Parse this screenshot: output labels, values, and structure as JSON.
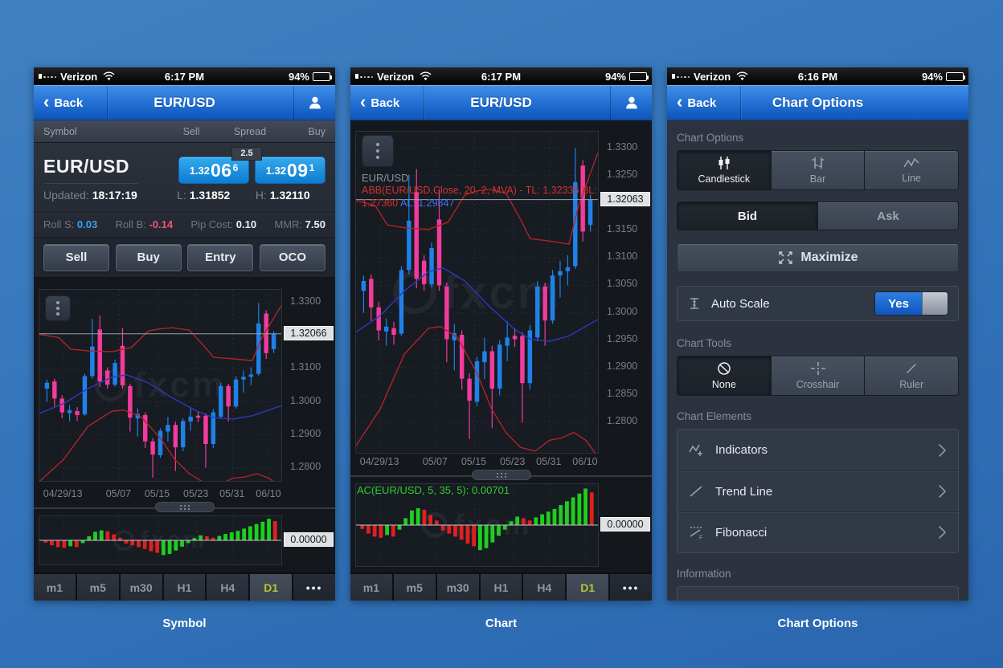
{
  "status": {
    "carrier": "Verizon",
    "battery": "94%",
    "times": [
      "6:17 PM",
      "6:17 PM",
      "6:16 PM"
    ]
  },
  "captions": [
    "Symbol",
    "Chart",
    "Chart Options"
  ],
  "watermark": "fxcm",
  "timeframes": {
    "items": [
      "m1",
      "m5",
      "m30",
      "H1",
      "H4",
      "D1",
      "•••"
    ],
    "active": "D1"
  },
  "panel_symbol": {
    "nav": {
      "back": "Back",
      "title": "EUR/USD"
    },
    "table_header": {
      "symbol": "Symbol",
      "sell": "Sell",
      "spread": "Spread",
      "buy": "Buy"
    },
    "quote": {
      "symbol": "EUR/USD",
      "updated_label": "Updated:",
      "updated": "18:17:19",
      "sell_prefix": "1.32",
      "sell_big": "06",
      "sell_pip": "6",
      "buy_prefix": "1.32",
      "buy_big": "09",
      "buy_pip": "1",
      "spread": "2.5",
      "low_label": "L:",
      "low": "1.31852",
      "high_label": "H:",
      "high": "1.32110",
      "roll_s_label": "Roll S:",
      "roll_s": "0.03",
      "roll_b_label": "Roll B:",
      "roll_b": "-0.14",
      "pip_cost_label": "Pip Cost:",
      "pip_cost": "0.10",
      "mmr_label": "MMR:",
      "mmr": "7.50"
    },
    "actions": [
      "Sell",
      "Buy",
      "Entry",
      "OCO"
    ],
    "price_tag": "1.32066",
    "hist_tag": "0.00000"
  },
  "panel_chart": {
    "nav": {
      "back": "Back",
      "title": "EUR/USD"
    },
    "overlay": {
      "symbol": "EUR/USD",
      "line1": "ABB(EUR/USD.Close, 20, 2, MVA) - TL: 1.32335 BL:",
      "line2_red": "1.27360",
      "line2_blue": "AL: 1.29847"
    },
    "price_tag": "1.32063",
    "ac_label": "AC(EUR/USD, 5, 35, 5): 0.00701",
    "hist_tag": "0.00000"
  },
  "panel_options": {
    "nav": {
      "back": "Back",
      "title": "Chart Options"
    },
    "sections": {
      "chart_options": "Chart Options",
      "chart_tools": "Chart Tools",
      "chart_elements": "Chart Elements",
      "information": "Information"
    },
    "chart_types": [
      "Candlestick",
      "Bar",
      "Line"
    ],
    "chart_type_active": "Candlestick",
    "bid_ask": [
      "Bid",
      "Ask"
    ],
    "price_type_active": "Bid",
    "maximize": "Maximize",
    "auto_scale": {
      "label": "Auto Scale",
      "toggle": "Yes"
    },
    "tools": [
      "None",
      "Crosshair",
      "Ruler"
    ],
    "tool_active": "None",
    "elements": [
      "Indicators",
      "Trend Line",
      "Fibonacci"
    ]
  },
  "chart_data": {
    "type": "candlestick+histogram",
    "price_chart": {
      "symbol": "EUR/USD",
      "x_ticks": [
        "04/29/13",
        "05/07",
        "05/15",
        "05/23",
        "05/31",
        "06/10"
      ],
      "x_tick_pos": [
        0.1,
        0.33,
        0.49,
        0.65,
        0.8,
        0.95
      ],
      "up_color": "#1f81e8",
      "down_color": "#f23b9d",
      "bb_color": "#b1232a",
      "ma_color": "#2b3bbf",
      "candles": [
        [
          1.304,
          1.3068,
          1.3,
          1.3058
        ],
        [
          1.3062,
          1.307,
          1.2985,
          1.301
        ],
        [
          1.301,
          1.302,
          1.295,
          1.2968
        ],
        [
          1.2966,
          1.299,
          1.294,
          1.2975
        ],
        [
          1.2972,
          1.2984,
          1.2942,
          1.296
        ],
        [
          1.2962,
          1.3085,
          1.2958,
          1.3078
        ],
        [
          1.3078,
          1.3252,
          1.307,
          1.3168
        ],
        [
          1.322,
          1.3262,
          1.3045,
          1.3062
        ],
        [
          1.3095,
          1.3105,
          1.304,
          1.3052
        ],
        [
          1.3052,
          1.3128,
          1.3046,
          1.3118
        ],
        [
          1.317,
          1.3225,
          1.304,
          1.305
        ],
        [
          1.3048,
          1.3055,
          1.291,
          1.2952
        ],
        [
          1.295,
          1.298,
          1.2895,
          1.2963
        ],
        [
          1.296,
          1.2968,
          1.286,
          1.288
        ],
        [
          1.288,
          1.289,
          1.277,
          1.284
        ],
        [
          1.2838,
          1.292,
          1.283,
          1.2912
        ],
        [
          1.291,
          1.2955,
          1.288,
          1.293
        ],
        [
          1.293,
          1.294,
          1.279,
          1.2862
        ],
        [
          1.2862,
          1.295,
          1.285,
          1.2942
        ],
        [
          1.294,
          1.2985,
          1.2912,
          1.2955
        ],
        [
          1.2958,
          1.2972,
          1.2938,
          1.2952
        ],
        [
          1.2958,
          1.2965,
          1.28,
          1.2872
        ],
        [
          1.2872,
          1.2978,
          1.286,
          1.2968
        ],
        [
          1.2955,
          1.3058,
          1.2948,
          1.3048
        ],
        [
          1.3048,
          1.3055,
          1.294,
          1.2986
        ],
        [
          1.2986,
          1.3078,
          1.298,
          1.3068
        ],
        [
          1.3068,
          1.3095,
          1.3028,
          1.3076
        ],
        [
          1.3076,
          1.3105,
          1.305,
          1.3083
        ],
        [
          1.3085,
          1.33,
          1.308,
          1.3238
        ],
        [
          1.3268,
          1.3278,
          1.313,
          1.3148
        ],
        [
          1.316,
          1.3215,
          1.3148,
          1.3206
        ]
      ],
      "bb_upper": [
        [
          0,
          1.3205
        ],
        [
          0.08,
          1.3195
        ],
        [
          0.13,
          1.316
        ],
        [
          0.2,
          1.3155
        ],
        [
          0.3,
          1.3152
        ],
        [
          0.38,
          1.3165
        ],
        [
          0.45,
          1.3215
        ],
        [
          0.5,
          1.3222
        ],
        [
          0.55,
          1.3225
        ],
        [
          0.62,
          1.3218
        ],
        [
          0.68,
          1.317
        ],
        [
          0.72,
          1.3135
        ],
        [
          0.78,
          1.3132
        ],
        [
          0.84,
          1.3128
        ],
        [
          0.88,
          1.3125
        ],
        [
          0.92,
          1.3195
        ],
        [
          1,
          1.3292
        ]
      ],
      "bb_lower": [
        [
          0,
          1.2758
        ],
        [
          0.1,
          1.2825
        ],
        [
          0.2,
          1.2925
        ],
        [
          0.3,
          1.2972
        ],
        [
          0.35,
          1.2975
        ],
        [
          0.42,
          1.2955
        ],
        [
          0.5,
          1.289
        ],
        [
          0.56,
          1.2825
        ],
        [
          0.62,
          1.2782
        ],
        [
          0.68,
          1.2755
        ],
        [
          0.74,
          1.2748
        ],
        [
          0.8,
          1.2768
        ],
        [
          0.85,
          1.2772
        ],
        [
          0.9,
          1.2782
        ],
        [
          0.95,
          1.2768
        ],
        [
          1,
          1.2738
        ]
      ],
      "ma": [
        [
          0,
          1.2965
        ],
        [
          0.1,
          1.2995
        ],
        [
          0.2,
          1.304
        ],
        [
          0.3,
          1.3075
        ],
        [
          0.36,
          1.3082
        ],
        [
          0.45,
          1.3058
        ],
        [
          0.55,
          1.3012
        ],
        [
          0.65,
          1.2972
        ],
        [
          0.72,
          1.2952
        ],
        [
          0.8,
          1.2948
        ],
        [
          0.88,
          1.2958
        ],
        [
          1,
          1.2988
        ]
      ],
      "views": {
        "small": {
          "y_max": 1.334,
          "y_min": 1.276,
          "ticks": [
            "1.3300",
            "1.3100",
            "1.3000",
            "1.2900",
            "1.2800"
          ],
          "tag_price": 1.32066
        },
        "large": {
          "y_max": 1.333,
          "y_min": 1.2745,
          "ticks": [
            "1.3300",
            "1.3250",
            "1.3200",
            "1.3150",
            "1.3100",
            "1.3050",
            "1.3000",
            "1.2950",
            "1.2900",
            "1.2850",
            "1.2800"
          ],
          "tag_price": 1.32063
        }
      }
    },
    "ac_histogram": {
      "label": "AC(EUR/USD, 5, 35, 5): 0.00701",
      "value": 0.00701,
      "zero_tag": "0.00000",
      "green": "#1ecf1e",
      "red": "#e02020",
      "bars": [
        [
          -0.1,
          "r"
        ],
        [
          -0.22,
          "r"
        ],
        [
          -0.3,
          "r"
        ],
        [
          -0.33,
          "r"
        ],
        [
          -0.26,
          "g"
        ],
        [
          -0.3,
          "r"
        ],
        [
          -0.12,
          "g"
        ],
        [
          0.18,
          "g"
        ],
        [
          0.38,
          "g"
        ],
        [
          0.44,
          "g"
        ],
        [
          0.4,
          "r"
        ],
        [
          0.26,
          "r"
        ],
        [
          0.12,
          "r"
        ],
        [
          -0.14,
          "r"
        ],
        [
          -0.22,
          "r"
        ],
        [
          -0.3,
          "r"
        ],
        [
          -0.38,
          "r"
        ],
        [
          -0.48,
          "r"
        ],
        [
          -0.55,
          "r"
        ],
        [
          -0.65,
          "g"
        ],
        [
          -0.6,
          "g"
        ],
        [
          -0.45,
          "g"
        ],
        [
          -0.28,
          "g"
        ],
        [
          -0.12,
          "g"
        ],
        [
          0.1,
          "g"
        ],
        [
          0.22,
          "g"
        ],
        [
          0.18,
          "r"
        ],
        [
          0.12,
          "r"
        ],
        [
          0.2,
          "g"
        ],
        [
          0.28,
          "g"
        ],
        [
          0.35,
          "g"
        ],
        [
          0.42,
          "g"
        ],
        [
          0.52,
          "g"
        ],
        [
          0.62,
          "g"
        ],
        [
          0.72,
          "g"
        ],
        [
          0.82,
          "g"
        ],
        [
          0.95,
          "g"
        ],
        [
          0.85,
          "r"
        ]
      ]
    }
  }
}
